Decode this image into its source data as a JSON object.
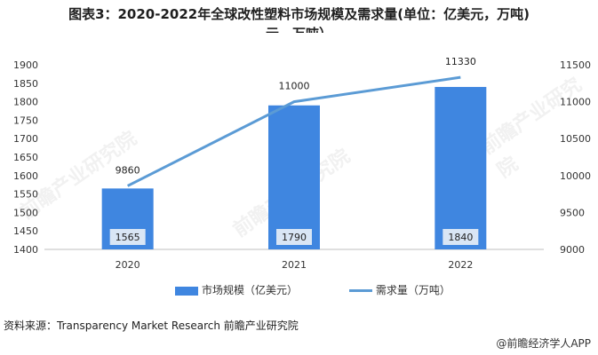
{
  "title_line1": "图表3：2020-2022年全球改性塑料市场规模及需求量(单位：亿美元，万吨)",
  "title_line2": "元，万吨）",
  "chart_data": {
    "type": "bar",
    "categories": [
      "2020",
      "2021",
      "2022"
    ],
    "series": [
      {
        "name": "市场规模（亿美元）",
        "type": "bar",
        "axis": "left",
        "values": [
          1565,
          1790,
          1840
        ]
      },
      {
        "name": "需求量（万吨）",
        "type": "line",
        "axis": "right",
        "values": [
          9860,
          11000,
          11330
        ]
      }
    ],
    "left_axis": {
      "ylim": [
        1400,
        1900
      ],
      "ticks": [
        "1400",
        "1450",
        "1500",
        "1550",
        "1600",
        "1650",
        "1700",
        "1750",
        "1800",
        "1850",
        "1900"
      ]
    },
    "right_axis": {
      "ylim": [
        9000,
        11500
      ],
      "ticks": [
        "9000",
        "9500",
        "10000",
        "10500",
        "11000",
        "11500"
      ]
    },
    "bar_labels": [
      "1565",
      "1790",
      "1840"
    ],
    "line_labels": [
      "9860",
      "11000",
      "11330"
    ],
    "legend_position": "bottom",
    "grid": false
  },
  "legend": {
    "bar_label": "市场规模（亿美元）",
    "line_label": "需求量（万吨）"
  },
  "source": "资料来源：Transparency Market Research 前瞻产业研究院",
  "brand": "@前瞻经济学人APP",
  "watermark": "前瞻产业研究院",
  "colors": {
    "bar": "#3f86e0",
    "line": "#5b9bd5",
    "bar_label_bg": "#d9e6f5"
  }
}
